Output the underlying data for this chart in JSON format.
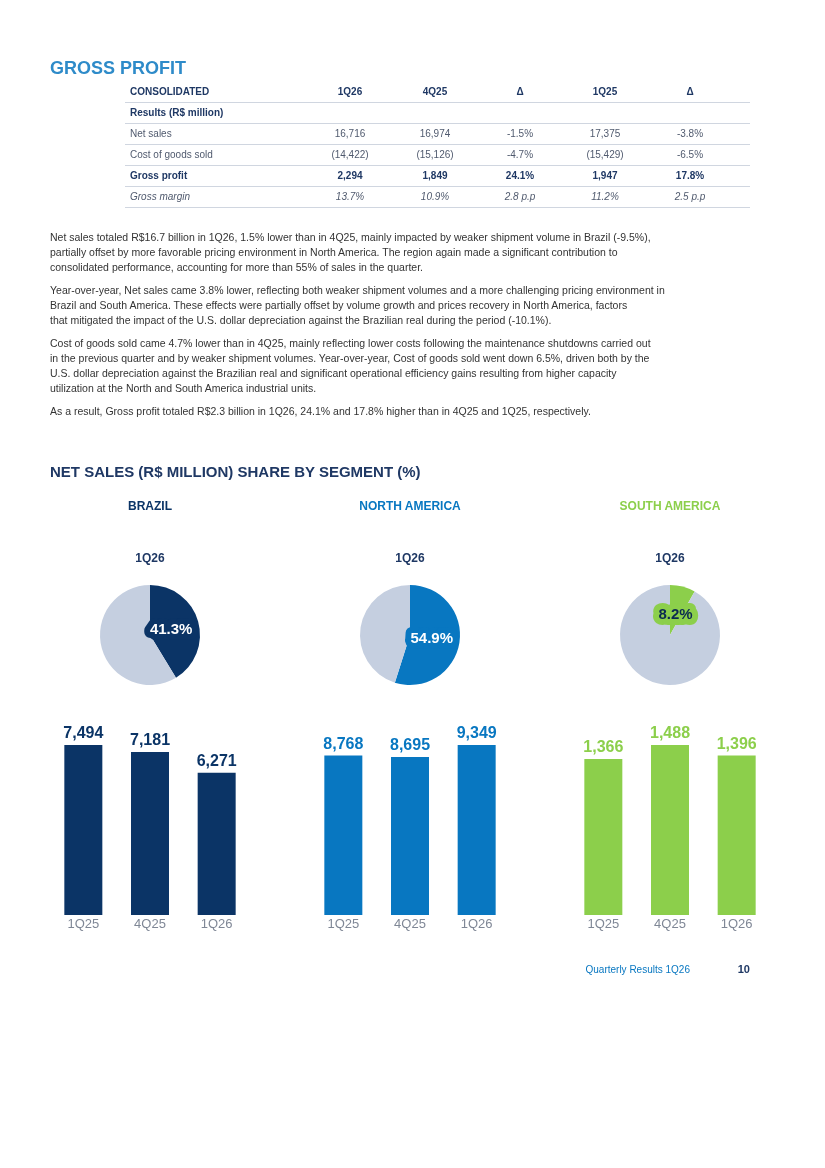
{
  "chart_data": [
    {
      "type": "other",
      "title": "GROSS PROFIT",
      "annotations": [
        "CONSOLIDATED\t1Q26\t4Q25\tΔ\t1Q25\tΔ",
        "Results (R$ million)",
        "Net sales\t16,716\t16,974\t-1.5%\t17,375\t-3.8%",
        "Cost of goods sold\t(14,422)\t(15,126)\t-4.7%\t(15,429)\t-6.5%",
        "Gross profit\t2,294\t1,849\t24.1%\t1,947\t17.8%",
        "Gross margin\t13.7%\t10.9%\t2.8 p.p\t11.2%\t2.5 p.p",
        "Net sales totaled R$16.7 billion in 1Q26, 1.5% lower than in 4Q25, mainly impacted by weaker shipment volume in Brazil (-9.5%), partially offset by more favorable pricing environment in North America. The region again made a significant contribution to consolidated performance, accounting for more than 55% of sales in the quarter.",
        "Year-over-year, Net sales came 3.8% lower, reflecting both weaker shipment volumes and a more challenging pricing environment in Brazil and South America. These effects were partially offset by volume growth and prices recovery in North America, factors that mitigated the impact of the U.S. dollar depreciation against the Brazilian real during the period (-10.1%).",
        "Cost of goods sold came 4.7% lower than in 4Q25, mainly reflecting lower costs following the maintenance shutdowns carried out in the previous quarter and by weaker shipment volumes. Year-over-year, Cost of goods sold went down 6.5%, driven both by the U.S. dollar depreciation against the Brazilian real and significant operational efficiency gains resulting from higher capacity utilization at the North and South America industrial units.",
        "As a result, Gross profit totaled R$2.3 billion in 1Q26, 24.1% and 17.8% higher than in 4Q25 and 1Q25, respectively.",
        "NET SALES (R$ MILLION) SHARE BY SEGMENT (%)",
        "Quarterly Results 1Q26",
        "10"
      ]
    },
    {
      "type": "pie",
      "title": "BRAZIL",
      "subtitle": "1Q26",
      "categories": [
        null,
        null
      ],
      "values": [
        41.3,
        58.7
      ],
      "colors": [
        "#0b3466",
        "#c5cfe0"
      ],
      "value_labels": [
        "41.3%",
        null
      ]
    },
    {
      "type": "pie",
      "title": "NORTH AMERICA",
      "subtitle": "1Q26",
      "categories": [
        null,
        null
      ],
      "values": [
        54.9,
        45.1
      ],
      "colors": [
        "#0877c1",
        "#c5cfe0"
      ],
      "value_labels": [
        "54.9%",
        null
      ]
    },
    {
      "type": "pie",
      "title": "SOUTH AMERICA",
      "subtitle": "1Q26",
      "categories": [
        null,
        null
      ],
      "values": [
        8.2,
        91.8
      ],
      "colors": [
        "#8ccf4b",
        "#c5cfe0"
      ],
      "value_labels": [
        "8.2%",
        null
      ]
    },
    {
      "type": "bar",
      "categories": [
        "1Q25",
        "4Q25",
        "1Q26"
      ],
      "values": [
        7494,
        7181,
        6271
      ],
      "color": "#0b3466",
      "value_labels": [
        "7,494",
        "7,181",
        "6,271"
      ],
      "tick_labels": "x"
    },
    {
      "type": "bar",
      "categories": [
        "1Q25",
        "4Q25",
        "1Q26"
      ],
      "values": [
        8768,
        8695,
        9349
      ],
      "color": "#0877c1",
      "value_labels": [
        "8,768",
        "8,695",
        "9,349"
      ],
      "tick_labels": "x"
    },
    {
      "type": "bar",
      "categories": [
        "1Q25",
        "4Q25",
        "1Q26"
      ],
      "values": [
        1366,
        1488,
        1396
      ],
      "color": "#8ccf4b",
      "value_labels": [
        "1,366",
        "1,488",
        "1,396"
      ],
      "tick_labels": "x"
    }
  ]
}
